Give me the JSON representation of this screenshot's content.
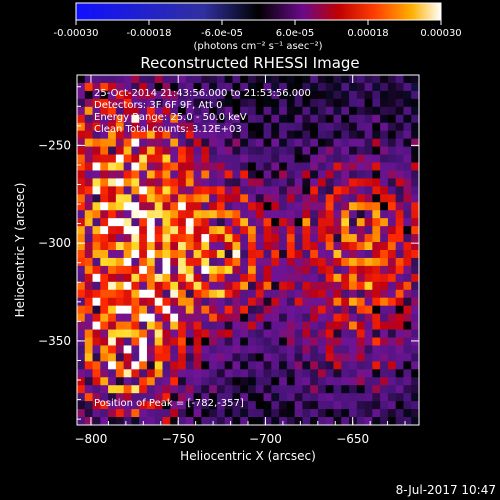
{
  "colorbar": {
    "ticks": [
      "-0.00030",
      "-0.00018",
      "-6.0e-05",
      "6.0e-05",
      "0.00018",
      "0.00030"
    ],
    "tick_values": [
      -0.0003,
      -0.00018,
      -6e-05,
      6e-05,
      0.00018,
      0.0003
    ],
    "range": [
      -0.0003,
      0.0003
    ],
    "units_label": "(photons cm⁻² s⁻¹ asec⁻²)"
  },
  "plot": {
    "title": "Reconstructed RHESSI Image",
    "info_lines": [
      "25-Oct-2014 21:43:56.000 to 21:53:56.000",
      "Detectors: 3F 6F 9F, Att 0",
      "Energy Range: 25.0 - 50.0 keV",
      "Clean    Total counts: 3.12E+03"
    ],
    "peak_label": "Position of Peak = [-782,-357]"
  },
  "footer": {
    "timestamp": "8-Jul-2017 10:47"
  },
  "chart_data": {
    "type": "heatmap",
    "title": "Reconstructed RHESSI Image",
    "xlabel": "Heliocentric X (arcsec)",
    "ylabel": "Heliocentric Y (arcsec)",
    "xlim": [
      -808,
      -612
    ],
    "ylim": [
      -393,
      -214
    ],
    "xticks": [
      -800,
      -750,
      -700,
      -650
    ],
    "xtick_labels": [
      "−800",
      "−750",
      "−700",
      "−650"
    ],
    "yticks": [
      -250,
      -300,
      -350
    ],
    "ytick_labels": [
      "−250",
      "−300",
      "−350"
    ],
    "colormap": "red-temperature (blue negative, black, purple, red, orange, yellow, white)",
    "peak": [
      -782,
      -357
    ],
    "grid": false,
    "sources": [
      {
        "x": -727,
        "y": -305,
        "amp": 0.00026
      },
      {
        "x": -785,
        "y": -300,
        "amp": 0.00024
      },
      {
        "x": -780,
        "y": -355,
        "amp": 0.0003
      },
      {
        "x": -645,
        "y": -290,
        "amp": 0.00022
      },
      {
        "x": -795,
        "y": -240,
        "amp": 0.00018
      },
      {
        "x": -765,
        "y": -265,
        "amp": 0.00016
      },
      {
        "x": -655,
        "y": -350,
        "amp": 0.00012
      },
      {
        "x": -630,
        "y": -320,
        "amp": 0.0001
      }
    ]
  }
}
